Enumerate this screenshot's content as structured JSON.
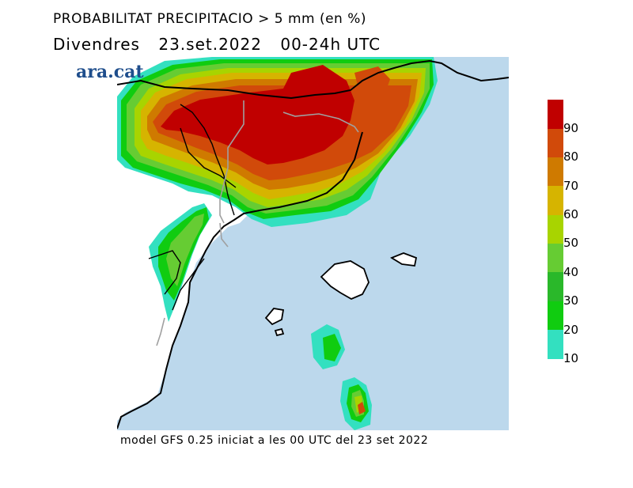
{
  "header": {
    "title": "PROBABILITAT PRECIPITACIO > 5 mm (en %)",
    "day": "Divendres",
    "date": "23.set.2022",
    "period": "00-24h UTC"
  },
  "brand": {
    "name": "ara.cat"
  },
  "footer": {
    "model_text": "model GFS 0.25 iniciat a les 00 UTC del 23 set 2022"
  },
  "legend": {
    "labels": [
      "90",
      "80",
      "70",
      "60",
      "50",
      "40",
      "30",
      "20",
      "10"
    ],
    "colors": [
      "#c00000",
      "#d14a0a",
      "#cf7a00",
      "#d6b400",
      "#a8d400",
      "#66cc33",
      "#2ab82a",
      "#10cc10",
      "#33e0c0"
    ]
  },
  "map": {
    "sea_color": "#bcd8ec",
    "land_color": "#ffffff"
  }
}
